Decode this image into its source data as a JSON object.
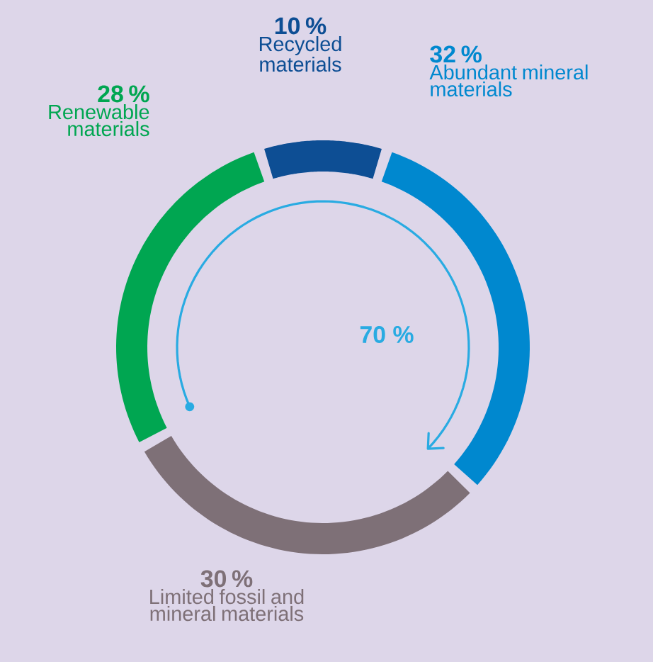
{
  "chart_data": {
    "type": "donut",
    "categories": [
      "Recycled materials",
      "Abundant mineral materials",
      "Limited fossil and mineral materials",
      "Renewable materials"
    ],
    "values": [
      10,
      32,
      30,
      28
    ],
    "colors": [
      "#0d4e94",
      "#0088cf",
      "#7e7077",
      "#00a651"
    ],
    "value_labels": [
      "10 %",
      "32 %",
      "30 %",
      "28 %"
    ],
    "annotations": [
      "70 %"
    ]
  }
}
